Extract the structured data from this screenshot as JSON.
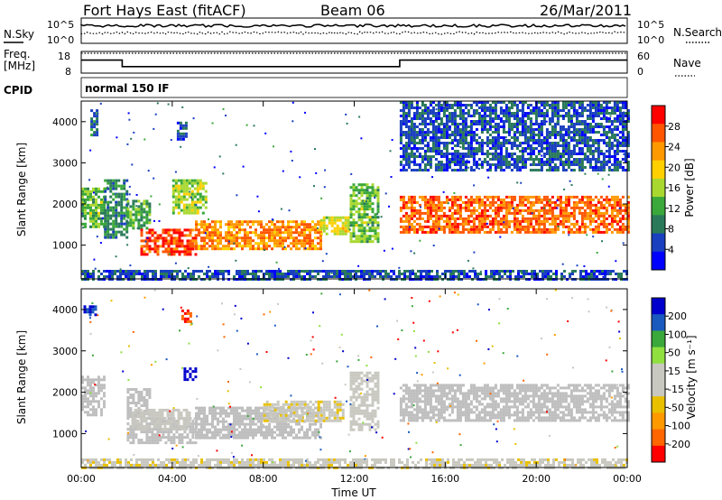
{
  "header": {
    "station": "Fort Hays East (fitACF)",
    "beam": "Beam 06",
    "date": "26/Mar/2011"
  },
  "left_labels": {
    "nsky": "N.Sky",
    "freq": "Freq.",
    "freq_unit": "[MHz]",
    "cpid": "CPID"
  },
  "right_labels": {
    "nsearch": "N.Search",
    "nave": "Nave"
  },
  "noise_axis": {
    "top_label": "10^5",
    "bottom_label": "10^0"
  },
  "freq_axis": {
    "top": "18",
    "bottom": "8"
  },
  "nave_axis": {
    "top": "60",
    "bottom": "0"
  },
  "cpid_text": "normal 150 IF",
  "colors": {
    "power": [
      "#0000ff",
      "#1a3fbf",
      "#2a7a5a",
      "#3aa83a",
      "#a8d830",
      "#ffd000",
      "#ff9900",
      "#ff5500",
      "#ff0000"
    ],
    "velocity": [
      "#ff0000",
      "#ff6600",
      "#ff9900",
      "#e8c000",
      "#c8c8c0",
      "#c8c8c0",
      "#90e040",
      "#3aa83a",
      "#1a5abf",
      "#0000cc"
    ],
    "ground_scatter": "#bebebe"
  },
  "chart_data": [
    {
      "type": "heatmap",
      "name": "Power",
      "ylabel": "Slant Range [km]",
      "yticks": [
        "1000",
        "2000",
        "3000",
        "4000"
      ],
      "ylim": [
        180,
        4500
      ],
      "x_range_hours": [
        0,
        24
      ],
      "colorbar": {
        "label": "Power [dB]",
        "ticks": [
          "4",
          "8",
          "12",
          "16",
          "20",
          "24",
          "28"
        ],
        "range": [
          0,
          32
        ]
      },
      "regions": [
        {
          "t": [
            0.0,
            1.0
          ],
          "range_km": [
            1450,
            2400
          ],
          "value": 14
        },
        {
          "t": [
            0.4,
            0.7
          ],
          "range_km": [
            3700,
            4300
          ],
          "value": 8
        },
        {
          "t": [
            1.0,
            2.0
          ],
          "range_km": [
            1200,
            2600
          ],
          "value": 10
        },
        {
          "t": [
            2.0,
            3.0
          ],
          "range_km": [
            1400,
            2100
          ],
          "value": 12
        },
        {
          "t": [
            2.6,
            5.0
          ],
          "range_km": [
            800,
            1400
          ],
          "value": 28
        },
        {
          "t": [
            4.0,
            5.5
          ],
          "range_km": [
            1800,
            2600
          ],
          "value": 16
        },
        {
          "t": [
            4.2,
            4.6
          ],
          "range_km": [
            3600,
            4000
          ],
          "value": 6
        },
        {
          "t": [
            5.0,
            10.5
          ],
          "range_km": [
            900,
            1600
          ],
          "value": 24
        },
        {
          "t": [
            10.5,
            11.8
          ],
          "range_km": [
            1300,
            1700
          ],
          "value": 18
        },
        {
          "t": [
            11.8,
            13.0
          ],
          "range_km": [
            1100,
            2500
          ],
          "value": 14
        },
        {
          "t": [
            14.0,
            24.0
          ],
          "range_km": [
            1300,
            2200
          ],
          "value": 26
        },
        {
          "t": [
            14.0,
            24.0
          ],
          "range_km": [
            2800,
            4500
          ],
          "value": 6
        },
        {
          "t": [
            0.0,
            24.0
          ],
          "range_km": [
            180,
            400
          ],
          "value": 6
        }
      ]
    },
    {
      "type": "heatmap",
      "name": "Velocity",
      "ylabel": "Slant Range [km]",
      "yticks": [
        "1000",
        "2000",
        "3000",
        "4000"
      ],
      "ylim": [
        180,
        4500
      ],
      "x_range_hours": [
        0,
        24
      ],
      "xticks": [
        "00:00",
        "04:00",
        "08:00",
        "12:00",
        "16:00",
        "20:00",
        "00:00"
      ],
      "xlabel": "Time UT",
      "colorbar": {
        "label": "Velocity [m s⁻¹]",
        "ticks": [
          "-200",
          "-100",
          "-50",
          "-15",
          "15",
          "50",
          "100",
          "200"
        ],
        "range": [
          -250,
          250
        ]
      },
      "regions": [
        {
          "t": [
            0.0,
            1.0
          ],
          "range_km": [
            1450,
            2400
          ],
          "value": 0,
          "ground": true
        },
        {
          "t": [
            0.1,
            0.6
          ],
          "range_km": [
            3850,
            4100
          ],
          "value": 200
        },
        {
          "t": [
            2.0,
            3.0
          ],
          "range_km": [
            1400,
            2100
          ],
          "value": 0,
          "ground": true
        },
        {
          "t": [
            2.0,
            5.0
          ],
          "range_km": [
            800,
            1400
          ],
          "value": 0,
          "ground": true
        },
        {
          "t": [
            2.2,
            4.8
          ],
          "range_km": [
            1100,
            1600
          ],
          "value": 30
        },
        {
          "t": [
            4.5,
            5.0
          ],
          "range_km": [
            2300,
            2600
          ],
          "value": 220
        },
        {
          "t": [
            4.4,
            4.8
          ],
          "range_km": [
            3700,
            4000
          ],
          "value": -200
        },
        {
          "t": [
            5.0,
            10.5
          ],
          "range_km": [
            900,
            1650
          ],
          "value": 0,
          "ground": true
        },
        {
          "t": [
            8.0,
            11.5
          ],
          "range_km": [
            1300,
            1800
          ],
          "value": -40
        },
        {
          "t": [
            11.8,
            13.0
          ],
          "range_km": [
            1100,
            2500
          ],
          "value": 30
        },
        {
          "t": [
            14.0,
            24.0
          ],
          "range_km": [
            1300,
            2200
          ],
          "value": 0,
          "ground": true
        },
        {
          "t": [
            0.0,
            24.0
          ],
          "range_km": [
            180,
            400
          ],
          "value": -40
        }
      ]
    },
    {
      "type": "line",
      "name": "Noise",
      "note_series": [
        "N.Sky",
        "N.Search"
      ]
    },
    {
      "type": "line",
      "name": "Frequency",
      "series": [
        {
          "name": "Freq.",
          "x": [
            0,
            1.8,
            1.8,
            14.0,
            14.0,
            24.0
          ],
          "y": [
            14,
            14,
            11,
            11,
            14,
            14
          ]
        },
        {
          "name": "Nave",
          "x": [
            0,
            24
          ],
          "y": [
            55,
            55
          ]
        }
      ]
    }
  ]
}
